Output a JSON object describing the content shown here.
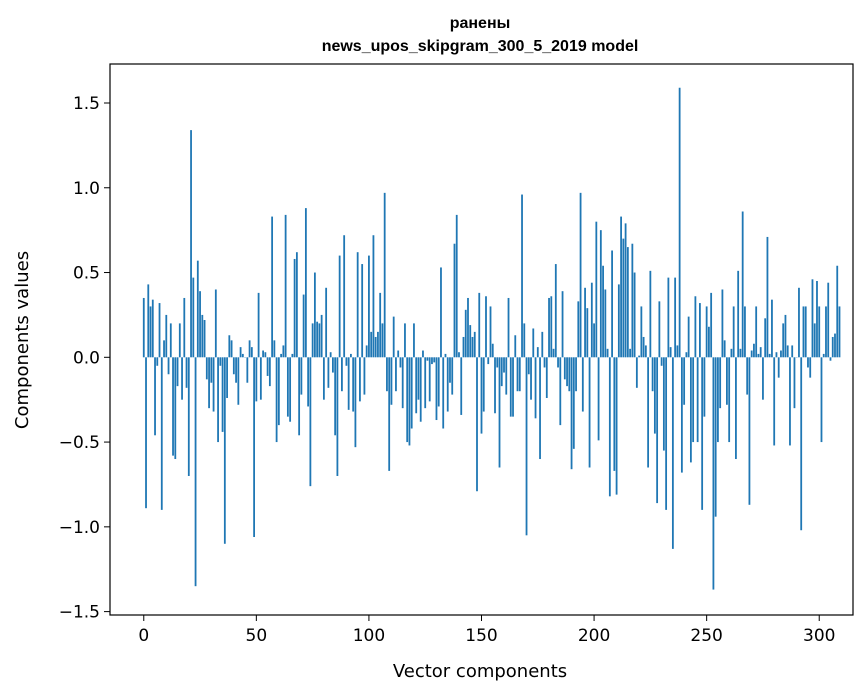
{
  "chart_data": {
    "type": "bar",
    "title": "ранены",
    "subtitle": "news_upos_skipgram_300_5_2019 model",
    "xlabel": "Vector components",
    "ylabel": "Components values",
    "xlim": [
      -15,
      315
    ],
    "ylim": [
      -1.52,
      1.73
    ],
    "x_ticks": [
      0,
      50,
      100,
      150,
      200,
      250,
      300
    ],
    "y_ticks": [
      -1.5,
      -1.0,
      -0.5,
      0.0,
      0.5,
      1.0,
      1.5
    ],
    "x_tick_labels": [
      "0",
      "50",
      "100",
      "150",
      "200",
      "250",
      "300"
    ],
    "y_tick_labels": [
      "−1.5",
      "−1.0",
      "−0.5",
      "0.0",
      "0.5",
      "1.0",
      "1.5"
    ],
    "bar_color": "#1f77b4",
    "grid": false,
    "values": [
      0.35,
      -0.89,
      0.43,
      0.3,
      0.34,
      -0.46,
      -0.05,
      0.32,
      -0.9,
      0.1,
      0.25,
      -0.1,
      0.2,
      -0.58,
      -0.6,
      -0.17,
      0.2,
      -0.25,
      0.35,
      -0.18,
      -0.7,
      1.34,
      0.47,
      -1.35,
      0.57,
      0.39,
      0.25,
      0.22,
      -0.13,
      -0.3,
      -0.15,
      -0.32,
      0.4,
      -0.5,
      -0.05,
      -0.44,
      -1.1,
      -0.24,
      0.13,
      0.1,
      -0.1,
      -0.15,
      -0.28,
      0.06,
      0.02,
      0.0,
      -0.15,
      0.1,
      0.06,
      -1.06,
      -0.26,
      0.38,
      -0.25,
      0.04,
      0.03,
      -0.11,
      -0.17,
      0.83,
      0.1,
      -0.5,
      -0.4,
      0.02,
      0.07,
      0.84,
      -0.35,
      -0.38,
      0.02,
      0.58,
      0.62,
      -0.46,
      -0.22,
      0.37,
      0.88,
      -0.29,
      -0.76,
      0.2,
      0.5,
      0.21,
      0.2,
      0.25,
      -0.25,
      0.41,
      -0.18,
      0.03,
      -0.09,
      -0.46,
      -0.7,
      0.6,
      -0.2,
      0.72,
      -0.05,
      -0.31,
      0.02,
      -0.32,
      -0.53,
      0.62,
      -0.26,
      0.55,
      -0.22,
      0.07,
      0.6,
      0.15,
      0.72,
      0.12,
      0.15,
      0.38,
      0.2,
      0.97,
      -0.2,
      -0.67,
      -0.28,
      0.24,
      -0.2,
      0.04,
      -0.06,
      -0.3,
      0.2,
      -0.5,
      -0.52,
      -0.42,
      0.2,
      -0.33,
      -0.25,
      -0.38,
      0.04,
      -0.3,
      -0.02,
      -0.26,
      -0.04,
      -0.03,
      -0.37,
      -0.29,
      0.53,
      -0.42,
      0.02,
      -0.32,
      -0.15,
      -0.22,
      0.67,
      0.84,
      0.03,
      -0.34,
      0.12,
      0.28,
      0.35,
      0.19,
      0.12,
      0.15,
      -0.79,
      0.38,
      -0.45,
      -0.32,
      0.36,
      -0.04,
      0.3,
      0.08,
      -0.33,
      -0.06,
      -0.65,
      -0.17,
      -0.09,
      -0.22,
      0.35,
      -0.35,
      -0.35,
      0.13,
      -0.2,
      -0.2,
      0.96,
      0.2,
      -1.05,
      -0.1,
      -0.25,
      0.17,
      -0.36,
      0.06,
      -0.6,
      0.15,
      -0.06,
      -0.24,
      0.35,
      0.36,
      0.05,
      0.55,
      -0.06,
      -0.4,
      0.39,
      -0.13,
      -0.17,
      -0.2,
      -0.66,
      -0.54,
      -0.2,
      0.33,
      0.97,
      -0.32,
      0.41,
      0.29,
      -0.65,
      0.44,
      0.2,
      0.8,
      -0.49,
      0.75,
      0.54,
      0.4,
      0.05,
      -0.82,
      0.63,
      -0.67,
      -0.81,
      0.43,
      0.83,
      0.7,
      0.79,
      0.65,
      0.05,
      0.67,
      0.5,
      -0.18,
      0.01,
      0.3,
      0.12,
      0.07,
      -0.65,
      0.51,
      -0.2,
      -0.45,
      -0.86,
      0.33,
      -0.05,
      -0.55,
      -0.9,
      0.47,
      0.06,
      -1.13,
      0.47,
      0.07,
      1.59,
      -0.68,
      -0.28,
      0.03,
      0.24,
      -0.62,
      -0.5,
      0.36,
      -0.5,
      0.32,
      -0.9,
      -0.35,
      0.3,
      0.18,
      0.38,
      -1.37,
      -0.94,
      -0.5,
      -0.3,
      0.4,
      0.1,
      -0.28,
      -0.5,
      0.05,
      0.3,
      -0.6,
      0.51,
      0.05,
      0.86,
      0.3,
      -0.22,
      -0.87,
      0.04,
      0.08,
      0.3,
      0.02,
      0.06,
      -0.25,
      0.23,
      0.71,
      0.02,
      0.34,
      -0.52,
      0.03,
      -0.12,
      0.04,
      0.2,
      0.25,
      0.07,
      -0.52,
      0.07,
      -0.3,
      0.0,
      0.41,
      -1.02,
      0.3,
      0.3,
      -0.06,
      -0.12,
      0.46,
      0.2,
      0.45,
      0.3,
      -0.5,
      0.02,
      0.3,
      0.44,
      -0.02,
      0.12,
      0.14,
      0.54,
      0.3
    ]
  }
}
